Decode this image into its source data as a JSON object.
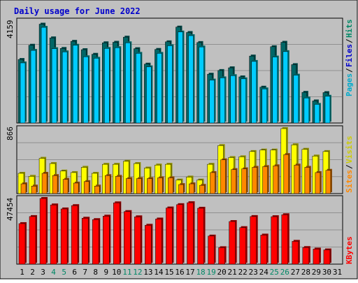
{
  "title": "Daily usage for June 2022",
  "colors": {
    "frame": "#c0c0c0",
    "panel": "#c0c0c0",
    "grid": "#909090",
    "title": "#0000cc",
    "hits_front": "#00ccff",
    "hits_back": "#006666",
    "files_front": "#00ccff",
    "files_back": "#006666",
    "visits": "#ffff00",
    "visits_back": "#8c8c00",
    "sites": "#ff8800",
    "sites_back": "#8c4a00",
    "kbytes": "#ff0000",
    "kbytes_back": "#8c0000",
    "label_pages": "#00aacc",
    "label_files": "#0000cc",
    "label_hits": "#008866",
    "label_sites": "#ff8800",
    "label_visits": "#cccc00",
    "label_kbytes": "#ff0000",
    "day_weekday": "#000000",
    "day_weekend": "#008866"
  },
  "panels": {
    "hits": {
      "max_label": "4159",
      "legend": {
        "pages": "Pages",
        "files": "Files",
        "hits": "Hits",
        "sep": "/"
      }
    },
    "visits": {
      "max_label": "866",
      "legend": {
        "sites": "Sites",
        "visits": "Visits",
        "sep": "/"
      }
    },
    "kbytes": {
      "max_label": "47454",
      "legend": {
        "kbytes": "KBytes"
      }
    }
  },
  "chart_data": {
    "type": "bar",
    "title": "Daily usage for June 2022",
    "days": [
      "1",
      "2",
      "3",
      "4",
      "5",
      "6",
      "7",
      "8",
      "9",
      "10",
      "11",
      "12",
      "13",
      "14",
      "15",
      "16",
      "17",
      "18",
      "19",
      "20",
      "21",
      "22",
      "23",
      "24",
      "25",
      "26",
      "27",
      "28",
      "29",
      "30",
      "31"
    ],
    "weekend_days": [
      "4",
      "5",
      "11",
      "12",
      "18",
      "19",
      "25",
      "26"
    ],
    "series": [
      {
        "name": "Hits",
        "panel": "hits",
        "max": 4159,
        "values": [
          2590,
          3170,
          4030,
          3470,
          3040,
          3330,
          2990,
          2800,
          3270,
          3290,
          3500,
          3030,
          2400,
          3000,
          3310,
          3910,
          3690,
          3280,
          1990,
          2140,
          2250,
          1880,
          2730,
          1460,
          3110,
          3290,
          2380,
          1250,
          900,
          1240,
          null
        ]
      },
      {
        "name": "Files",
        "panel": "hits",
        "max": 4159,
        "values": [
          2450,
          2960,
          3900,
          3030,
          2900,
          3170,
          2700,
          2640,
          3040,
          3070,
          3270,
          2840,
          2290,
          2840,
          3150,
          3710,
          3560,
          3100,
          1750,
          1840,
          1930,
          1800,
          2510,
          1390,
          2690,
          2910,
          1950,
          1020,
          760,
          1090,
          null
        ]
      },
      {
        "name": "Pages",
        "panel": "hits",
        "max": 4159,
        "values": [
          2450,
          2960,
          3900,
          3030,
          2900,
          3170,
          2700,
          2640,
          3040,
          3070,
          3270,
          2840,
          2290,
          2840,
          3150,
          3710,
          3560,
          3100,
          1750,
          1840,
          1930,
          1800,
          2510,
          1390,
          2690,
          2910,
          1950,
          1020,
          760,
          1090,
          null
        ]
      },
      {
        "name": "Visits",
        "panel": "visits",
        "max": 866,
        "values": [
          270,
          230,
          470,
          400,
          300,
          280,
          350,
          270,
          390,
          390,
          430,
          400,
          340,
          380,
          390,
          180,
          220,
          180,
          390,
          640,
          480,
          490,
          560,
          580,
          580,
          866,
          650,
          590,
          500,
          560,
          null
        ]
      },
      {
        "name": "Sites",
        "panel": "visits",
        "max": 866,
        "values": [
          130,
          100,
          270,
          240,
          190,
          140,
          160,
          100,
          240,
          230,
          200,
          200,
          200,
          210,
          210,
          120,
          130,
          110,
          280,
          450,
          320,
          330,
          350,
          360,
          370,
          520,
          380,
          350,
          280,
          310,
          null
        ]
      },
      {
        "name": "KBytes",
        "panel": "kbytes",
        "max": 47454,
        "values": [
          29300,
          34400,
          47454,
          42800,
          39900,
          42300,
          33200,
          32200,
          34700,
          44300,
          38000,
          34200,
          28100,
          32600,
          40600,
          43000,
          44400,
          40400,
          20300,
          11900,
          30800,
          26400,
          34400,
          21000,
          34300,
          35700,
          16500,
          12000,
          10900,
          10300,
          null
        ]
      }
    ]
  }
}
